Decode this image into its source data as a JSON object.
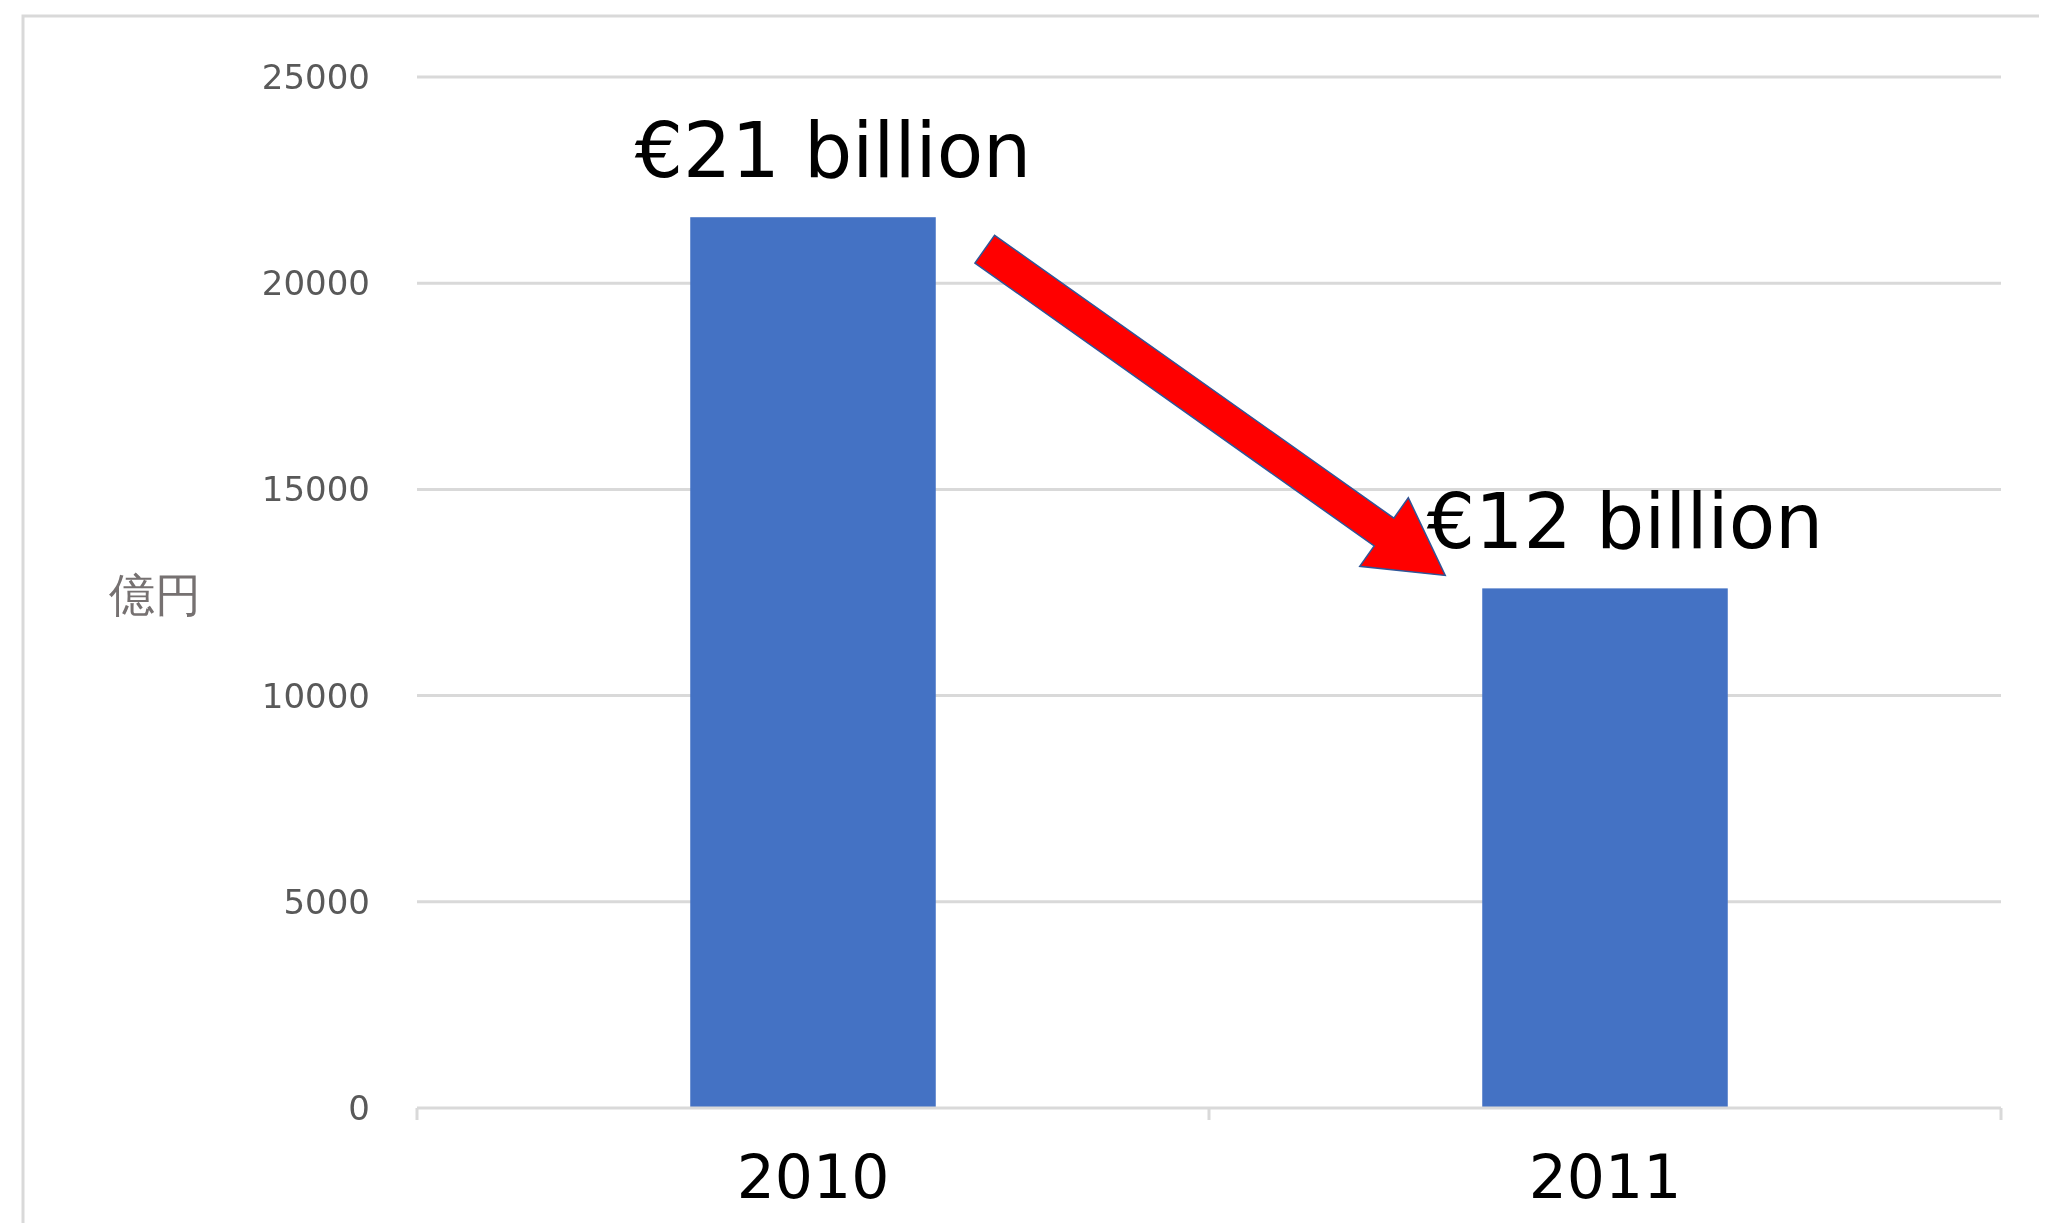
{
  "chart_data": {
    "type": "bar",
    "ylabel": "億円",
    "categories": [
      "2010",
      "2011"
    ],
    "values": [
      21600,
      12600
    ],
    "color": "#4472c4",
    "ylim": [
      0,
      25000
    ],
    "yticks": [
      0,
      5000,
      10000,
      15000,
      20000,
      25000
    ],
    "grid": "y",
    "annotations": [
      {
        "text": "€21 billion",
        "x": "2010",
        "y": 21600
      },
      {
        "text": "€12 billion",
        "x": "2011",
        "y": 12600
      }
    ]
  }
}
